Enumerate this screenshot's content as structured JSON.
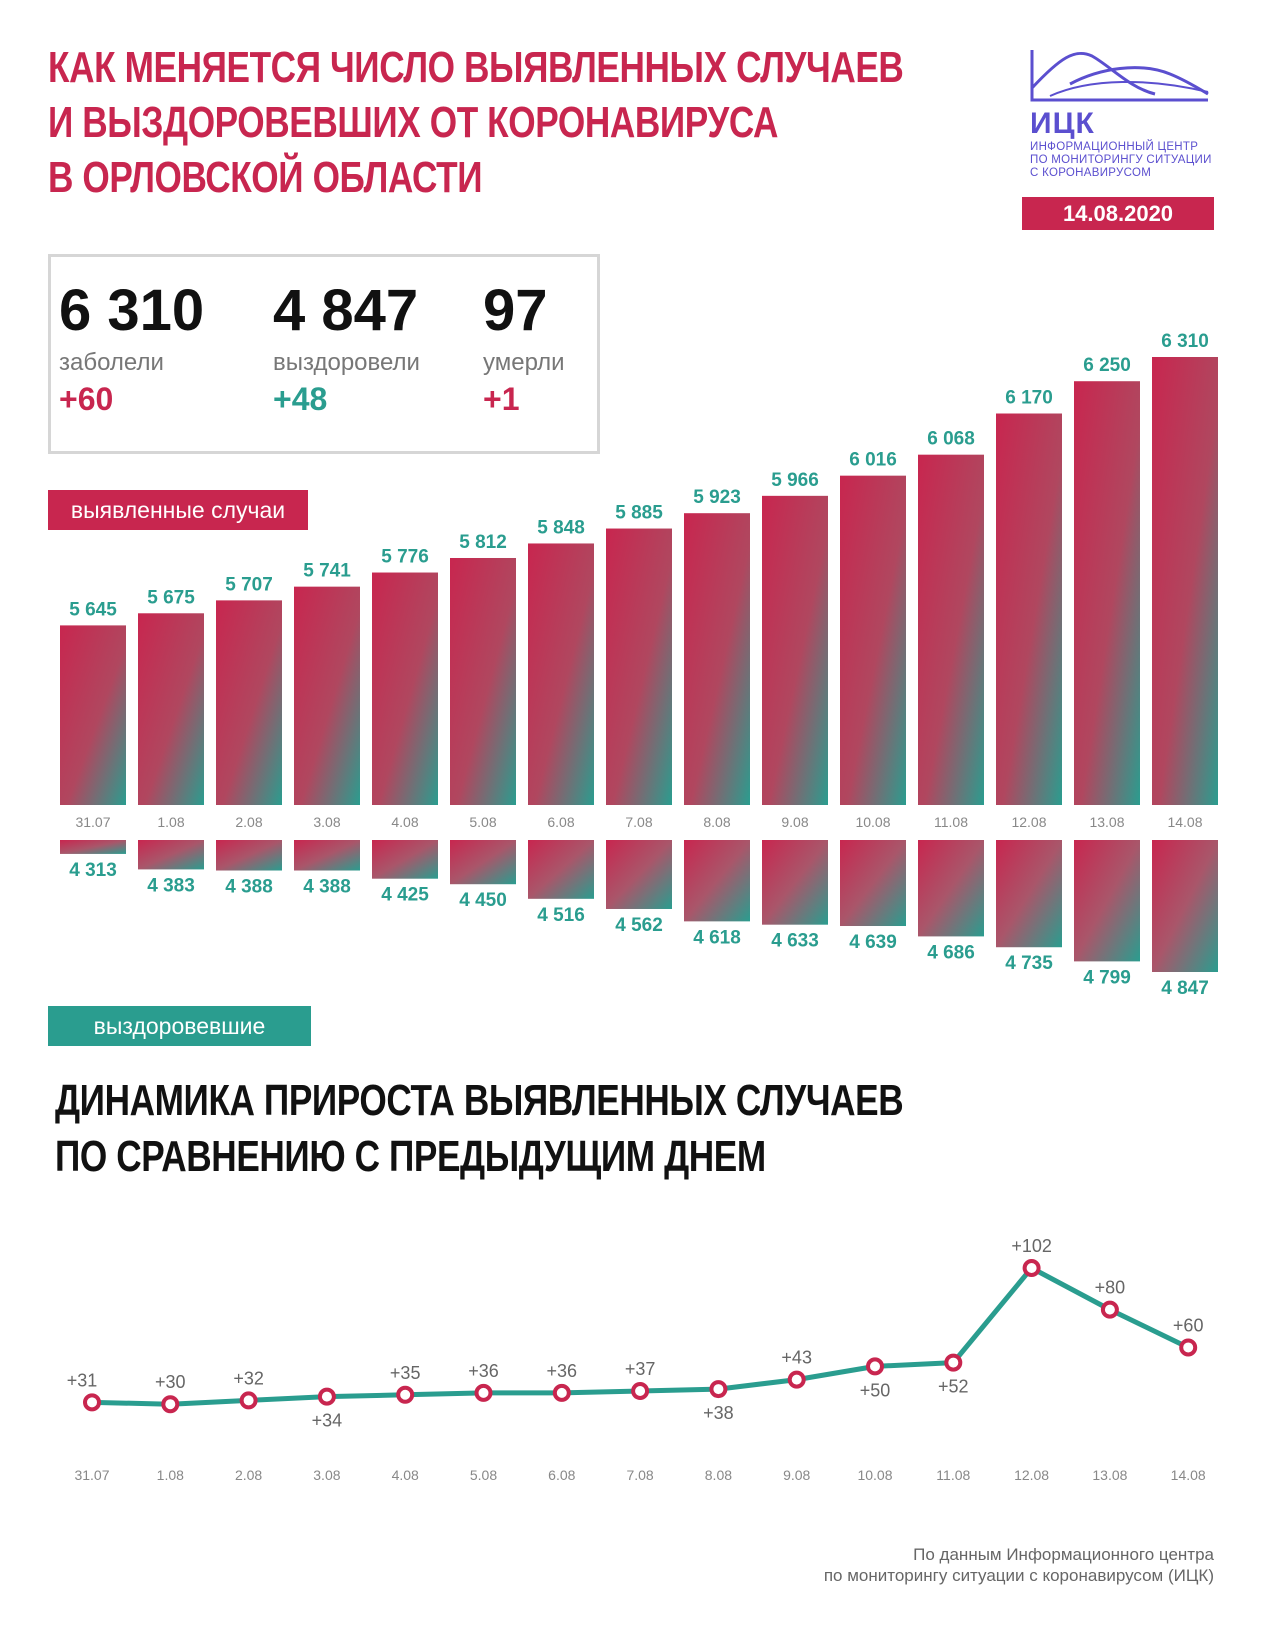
{
  "header": {
    "title_lines": [
      "Как меняется число выявленных случаев",
      "и выздоровевших от коронавируса",
      "в Орловской области"
    ],
    "logo_abbr": "ИЦК",
    "logo_lines": [
      "Информационный центр",
      "по мониторингу ситуации",
      "с коронавирусом"
    ],
    "date": "14.08.2020"
  },
  "summary": {
    "infected": {
      "value": "6 310",
      "label": "заболели",
      "delta": "+60"
    },
    "recovered": {
      "value": "4 847",
      "label": "выздоровели",
      "delta": "+48"
    },
    "died": {
      "value": "97",
      "label": "умерли",
      "delta": "+1"
    }
  },
  "tags": {
    "cases": "выявленные случаи",
    "recovered": "выздоровевшие"
  },
  "subtitle_lines": [
    "Динамика прироста выявленных случаев",
    "по сравнению с предыдущим днем"
  ],
  "source_lines": [
    "По данным Информационного центра",
    "по мониторингу ситуации с коронавирусом (ИЦК)"
  ],
  "colors": {
    "pink": "#c8264f",
    "teal": "#2a9d8f",
    "logo": "#5b4fcf"
  },
  "chart_data": [
    {
      "type": "bar",
      "categories": [
        "31.07",
        "1.08",
        "2.08",
        "3.08",
        "4.08",
        "5.08",
        "6.08",
        "7.08",
        "8.08",
        "9.08",
        "10.08",
        "11.08",
        "12.08",
        "13.08",
        "14.08"
      ],
      "series": [
        {
          "name": "выявленные случаи",
          "values": [
            5645,
            5675,
            5707,
            5741,
            5776,
            5812,
            5848,
            5885,
            5923,
            5966,
            6016,
            6068,
            6170,
            6250,
            6310
          ],
          "labels": [
            "5 645",
            "5 675",
            "5 707",
            "5 741",
            "5 776",
            "5 812",
            "5 848",
            "5 885",
            "5 923",
            "5 966",
            "6 016",
            "6 068",
            "6 170",
            "6 250",
            "6 310"
          ]
        },
        {
          "name": "выздоровевшие",
          "values": [
            4313,
            4383,
            4388,
            4388,
            4425,
            4450,
            4516,
            4562,
            4618,
            4633,
            4639,
            4686,
            4735,
            4799,
            4847
          ],
          "labels": [
            "4 313",
            "4 383",
            "4 388",
            "4 388",
            "4 425",
            "4 450",
            "4 516",
            "4 562",
            "4 618",
            "4 633",
            "4 639",
            "4 686",
            "4 735",
            "4 799",
            "4 847"
          ]
        }
      ]
    },
    {
      "type": "line",
      "title": "Динамика прироста выявленных случаев по сравнению с предыдущим днем",
      "x": [
        "31.07",
        "1.08",
        "2.08",
        "3.08",
        "4.08",
        "5.08",
        "6.08",
        "7.08",
        "8.08",
        "9.08",
        "10.08",
        "11.08",
        "12.08",
        "13.08",
        "14.08"
      ],
      "values": [
        31,
        30,
        32,
        34,
        35,
        36,
        36,
        37,
        38,
        43,
        50,
        52,
        102,
        80,
        60
      ],
      "labels": [
        "+31",
        "+30",
        "+32",
        "+34",
        "+35",
        "+36",
        "+36",
        "+37",
        "+38",
        "+43",
        "+50",
        "+52",
        "+102",
        "+80",
        "+60"
      ],
      "label_position": [
        "above",
        "above",
        "above",
        "below",
        "above",
        "above",
        "above",
        "above",
        "below",
        "above",
        "below",
        "below",
        "above",
        "above",
        "above"
      ]
    }
  ]
}
